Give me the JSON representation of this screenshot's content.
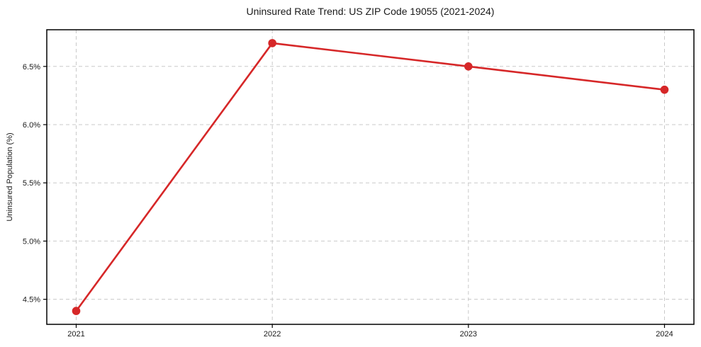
{
  "chart_data": {
    "type": "line",
    "title": "Uninsured Rate Trend: US ZIP Code 19055 (2021-2024)",
    "xlabel": "",
    "ylabel": "Uninsured Population (%)",
    "categories": [
      2021,
      2022,
      2023,
      2024
    ],
    "x_tick_labels": [
      "2021",
      "2022",
      "2023",
      "2024"
    ],
    "series": [
      {
        "name": "Uninsured rate",
        "values": [
          4.4,
          6.7,
          6.5,
          6.3
        ]
      }
    ],
    "y_ticks": [
      {
        "value": 4.5,
        "label": "4.5%"
      },
      {
        "value": 5.0,
        "label": "5.0%"
      },
      {
        "value": 5.5,
        "label": "5.5%"
      },
      {
        "value": 6.0,
        "label": "6.0%"
      },
      {
        "value": 6.5,
        "label": "6.5%"
      }
    ],
    "xlim": [
      2020.85,
      2024.15
    ],
    "ylim": [
      4.285,
      6.815
    ],
    "grid": true,
    "grid_style": "dashed",
    "legend": "none",
    "colors": {
      "line": "#d62728",
      "marker": "#d62728",
      "grid": "#c9c9c9",
      "spine": "#000000",
      "text": "#1a1a1a",
      "background": "#ffffff"
    }
  }
}
